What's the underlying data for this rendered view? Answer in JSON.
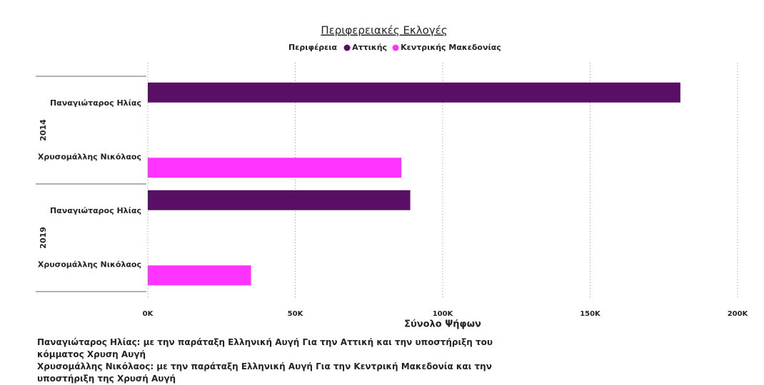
{
  "chart_data": {
    "type": "bar",
    "orientation": "horizontal",
    "title": "Περιφερειακές Εκλογές",
    "legend_title": "Περιφέρεια",
    "x_label": "Σύνολο Ψήφων",
    "groups": [
      {
        "label": "2014",
        "categories": [
          "Παναγιώταρος Ηλίας",
          "Χρυσομάλλης Νικόλαος"
        ]
      },
      {
        "label": "2019",
        "categories": [
          "Παναγιώταρος Ηλίας",
          "Χρυσομάλλης Νικόλαος"
        ]
      }
    ],
    "series": [
      {
        "name": "Αττικής",
        "color": "#5a0f66",
        "values": [
          180600,
          null,
          89000,
          null
        ]
      },
      {
        "name": "Κεντρικής Μακεδονίας",
        "color": "#ff33ff",
        "values": [
          null,
          86000,
          null,
          35000
        ]
      }
    ],
    "xlim": [
      0,
      200000
    ],
    "xticks": [
      {
        "value": 0,
        "label": "0K"
      },
      {
        "value": 50000,
        "label": "50K"
      },
      {
        "value": 100000,
        "label": "100K"
      },
      {
        "value": 150000,
        "label": "150K"
      },
      {
        "value": 200000,
        "label": "200K"
      }
    ],
    "grid": true,
    "notes": [
      "Παναγιώταρος Ηλίας: με την παράταξη Ελληνική Αυγή Για την Αττική και την υποστήριξη του κόμματος Χρυση Αυγή",
      "Χρυσομάλλης Νικόλαος: με την παράταξη Ελληνική Αυγή Για την Κεντρική Μακεδονία και την υποστήριξη της Χρυσή Αυγή"
    ]
  }
}
